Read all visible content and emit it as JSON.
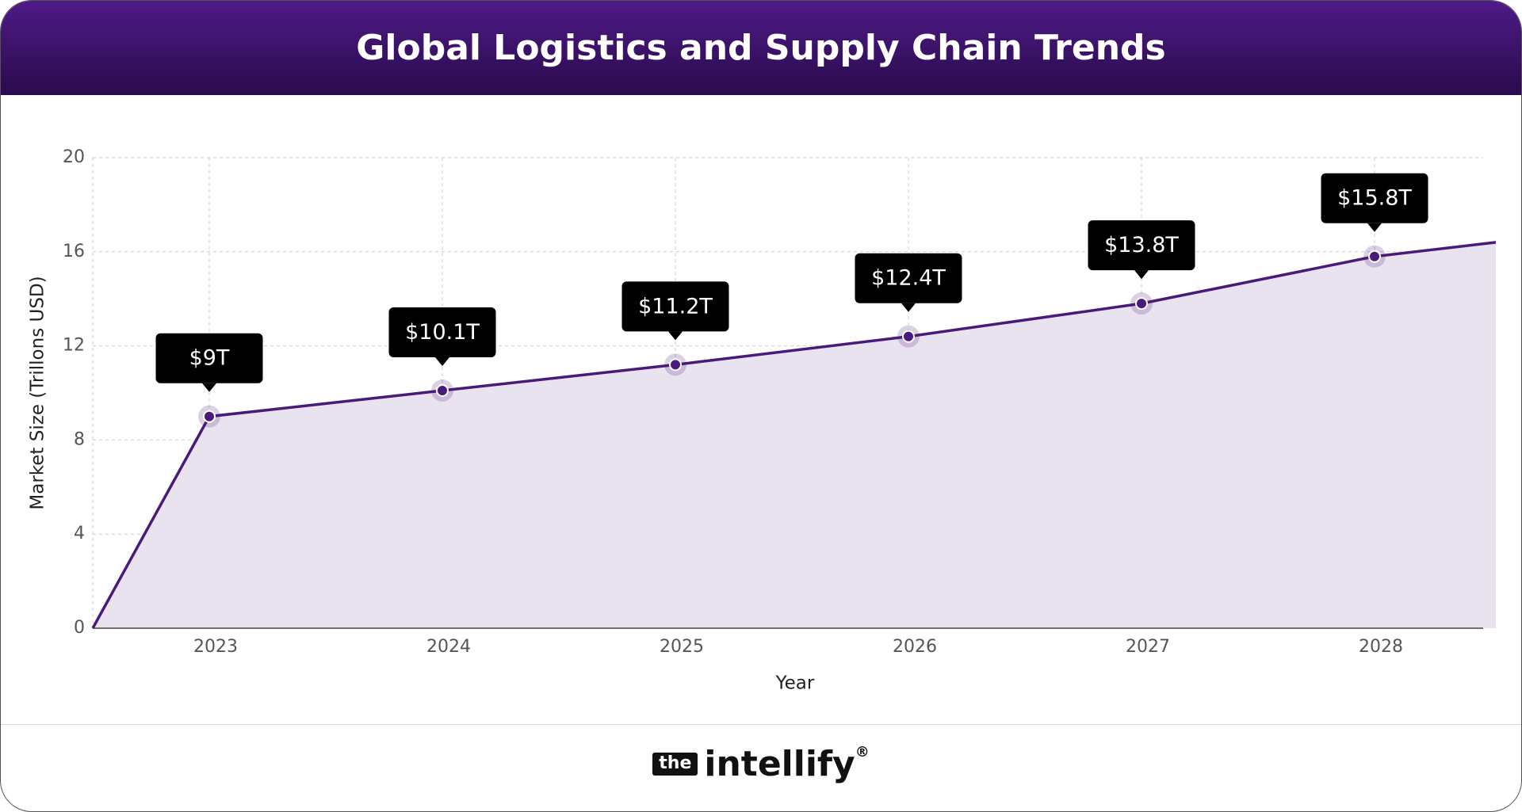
{
  "header": {
    "title": "Global Logistics and Supply Chain Trends"
  },
  "chart_data": {
    "type": "area",
    "categories": [
      null,
      "2023",
      "2024",
      "2025",
      "2026",
      "2027",
      "2028",
      null
    ],
    "values": [
      0,
      9,
      10.1,
      11.2,
      12.4,
      13.8,
      15.8,
      16.4
    ],
    "value_labels": [
      null,
      "$9T",
      "$10.1T",
      "$11.2T",
      "$12.4T",
      "$13.8T",
      "$15.8T",
      null
    ],
    "color": "#4a1a7a",
    "fill": "#e9e3f0",
    "ylim": [
      0,
      20
    ],
    "yticks": [
      0,
      4,
      8,
      12,
      16,
      20
    ],
    "grid": true,
    "xlabel": "Year",
    "ylabel": "Market Size (Trillons USD)"
  },
  "footer": {
    "brand_tag": "the",
    "brand_name": "intellify",
    "brand_mark": "®"
  }
}
